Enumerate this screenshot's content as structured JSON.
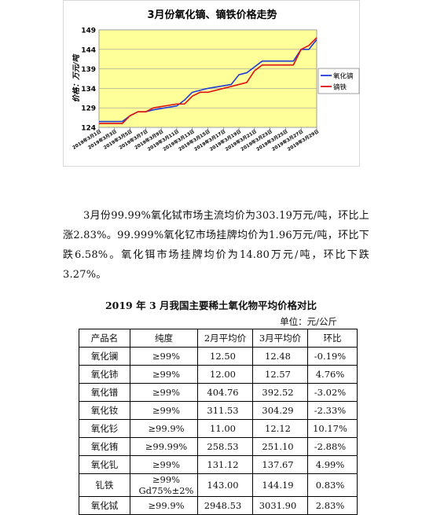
{
  "chart": {
    "title": "3月份氧化镝、镝铁价格走势",
    "ylabel": "价格：万元/吨",
    "legend": [
      "氧化镝",
      "镝铁"
    ]
  },
  "chart_data": {
    "type": "line",
    "title": "3月份氧化镝、镝铁价格走势",
    "xlabel": "",
    "ylabel": "价格：万元/吨",
    "ylim": [
      124,
      149
    ],
    "yticks": [
      124,
      129,
      134,
      139,
      144,
      149
    ],
    "xtick_labels": [
      "2019年3月1日",
      "2019年3月3日",
      "2019年3月5日",
      "2019年3月7日",
      "2019年3月9日",
      "2019年3月11日",
      "2019年3月13日",
      "2019年3月15日",
      "2019年3月17日",
      "2019年3月19日",
      "2019年3月21日",
      "2019年3月23日",
      "2019年3月25日",
      "2019年3月27日",
      "2019年3月29日"
    ],
    "grid": true,
    "legend_position": "right",
    "colors": {
      "氧化镝": "#1f3dd6",
      "镝铁": "#e01010",
      "plot_bg": "#ffff99",
      "frame_bg": "#ffffff"
    },
    "x": [
      1,
      4,
      5,
      6,
      7,
      8,
      11,
      12,
      13,
      14,
      15,
      18,
      19,
      20,
      21,
      22,
      25,
      26,
      27,
      28,
      29
    ],
    "series": [
      {
        "name": "氧化镝",
        "values": [
          125.5,
          125.5,
          127,
          128,
          128,
          128.5,
          129.5,
          131,
          133,
          133.5,
          134,
          135,
          137.5,
          138,
          139.5,
          141,
          141,
          141,
          144,
          144,
          146.5
        ]
      },
      {
        "name": "镝铁",
        "values": [
          125,
          125,
          127,
          128,
          128,
          129,
          130,
          130,
          132,
          133,
          133,
          134.5,
          135,
          135.5,
          138.5,
          140,
          140,
          140,
          144,
          145,
          147
        ]
      }
    ]
  },
  "paragraph": "3月份99.99%氧化铽市场主流均价为303.19万元/吨，环比上涨2.83%。99.999%氧化钇市场挂牌均价为1.96万元/吨，环比下跌6.58%。氧化铒市场挂牌均价为14.80万元/吨，环比下跌3.27%。",
  "table": {
    "title": "2019 年 3 月我国主要稀土氧化物平均价格对比",
    "unit": "单位：元/公斤",
    "headers": [
      "产品名",
      "纯度",
      "2月平均价",
      "3月平均价",
      "环比"
    ],
    "rows": [
      [
        "氧化镧",
        "≥99%",
        "12.50",
        "12.48",
        "-0.19%"
      ],
      [
        "氧化铈",
        "≥99%",
        "12.00",
        "12.57",
        "4.76%"
      ],
      [
        "氧化镨",
        "≥99%",
        "404.76",
        "392.52",
        "-3.02%"
      ],
      [
        "氧化钕",
        "≥99%",
        "311.53",
        "304.29",
        "-2.33%"
      ],
      [
        "氧化钐",
        "≥99.9%",
        "11.00",
        "12.12",
        "10.17%"
      ],
      [
        "氧化铕",
        "≥99.99%",
        "258.53",
        "251.10",
        "-2.88%"
      ],
      [
        "氧化钆",
        "≥99%",
        "131.12",
        "137.67",
        "4.99%"
      ],
      [
        "钆铁",
        "≥99% Gd75%±2%",
        "143.00",
        "144.19",
        "0.83%"
      ],
      [
        "氧化铽",
        "≥99.9%",
        "2948.53",
        "3031.90",
        "2.83%"
      ]
    ]
  }
}
